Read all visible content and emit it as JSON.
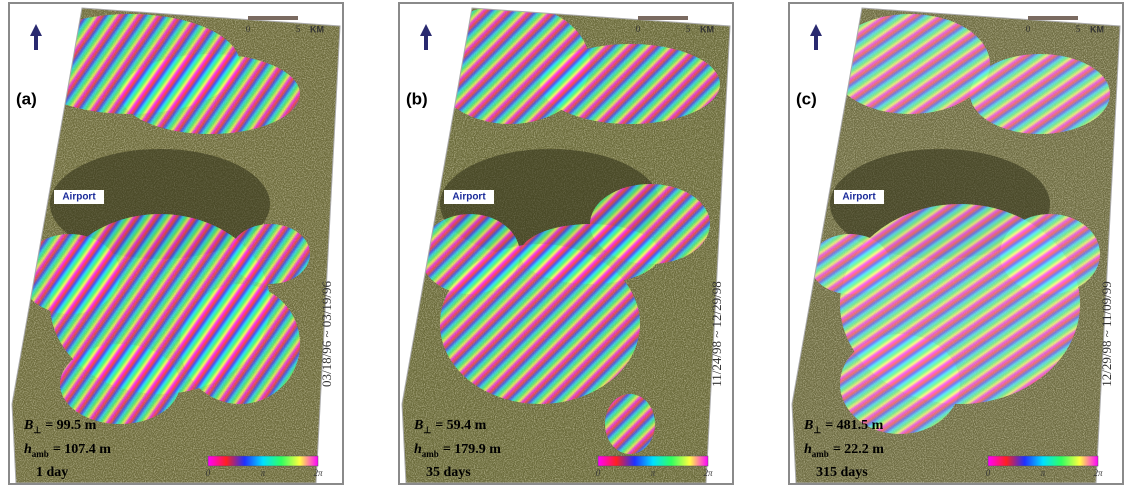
{
  "panels": [
    {
      "label": "(a)",
      "airport": "Airport",
      "dates": "03/18/96 ~ 03/19/96",
      "baseline": {
        "symbol": "B",
        "subscript": "⊥",
        "value": "= 99.5 m"
      },
      "ambiguity": {
        "symbol": "h",
        "subscript": "amb",
        "value": "= 107.4 m"
      },
      "interval": "1 day",
      "scale": {
        "start": "0",
        "end": "5",
        "unit": "KM"
      },
      "colorbar": [
        "0",
        "π",
        "2π"
      ]
    },
    {
      "label": "(b)",
      "airport": "Airport",
      "dates": "11/24/98 ~ 12/29/98",
      "baseline": {
        "symbol": "B",
        "subscript": "⊥",
        "value": "= 59.4 m"
      },
      "ambiguity": {
        "symbol": "h",
        "subscript": "amb",
        "value": "= 179.9 m"
      },
      "interval": "35 days",
      "scale": {
        "start": "0",
        "end": "5",
        "unit": "KM"
      },
      "colorbar": [
        "0",
        "π",
        "2π"
      ]
    },
    {
      "label": "(c)",
      "airport": "Airport",
      "dates": "12/29/98 ~ 11/09/99",
      "baseline": {
        "symbol": "B",
        "subscript": "⊥",
        "value": "= 481.5 m"
      },
      "ambiguity": {
        "symbol": "h",
        "subscript": "amb",
        "value": "= 22.2 m"
      },
      "interval": "315 days",
      "scale": {
        "start": "0",
        "end": "5",
        "unit": "KM"
      },
      "colorbar": [
        "0",
        "π",
        "2π"
      ]
    }
  ]
}
